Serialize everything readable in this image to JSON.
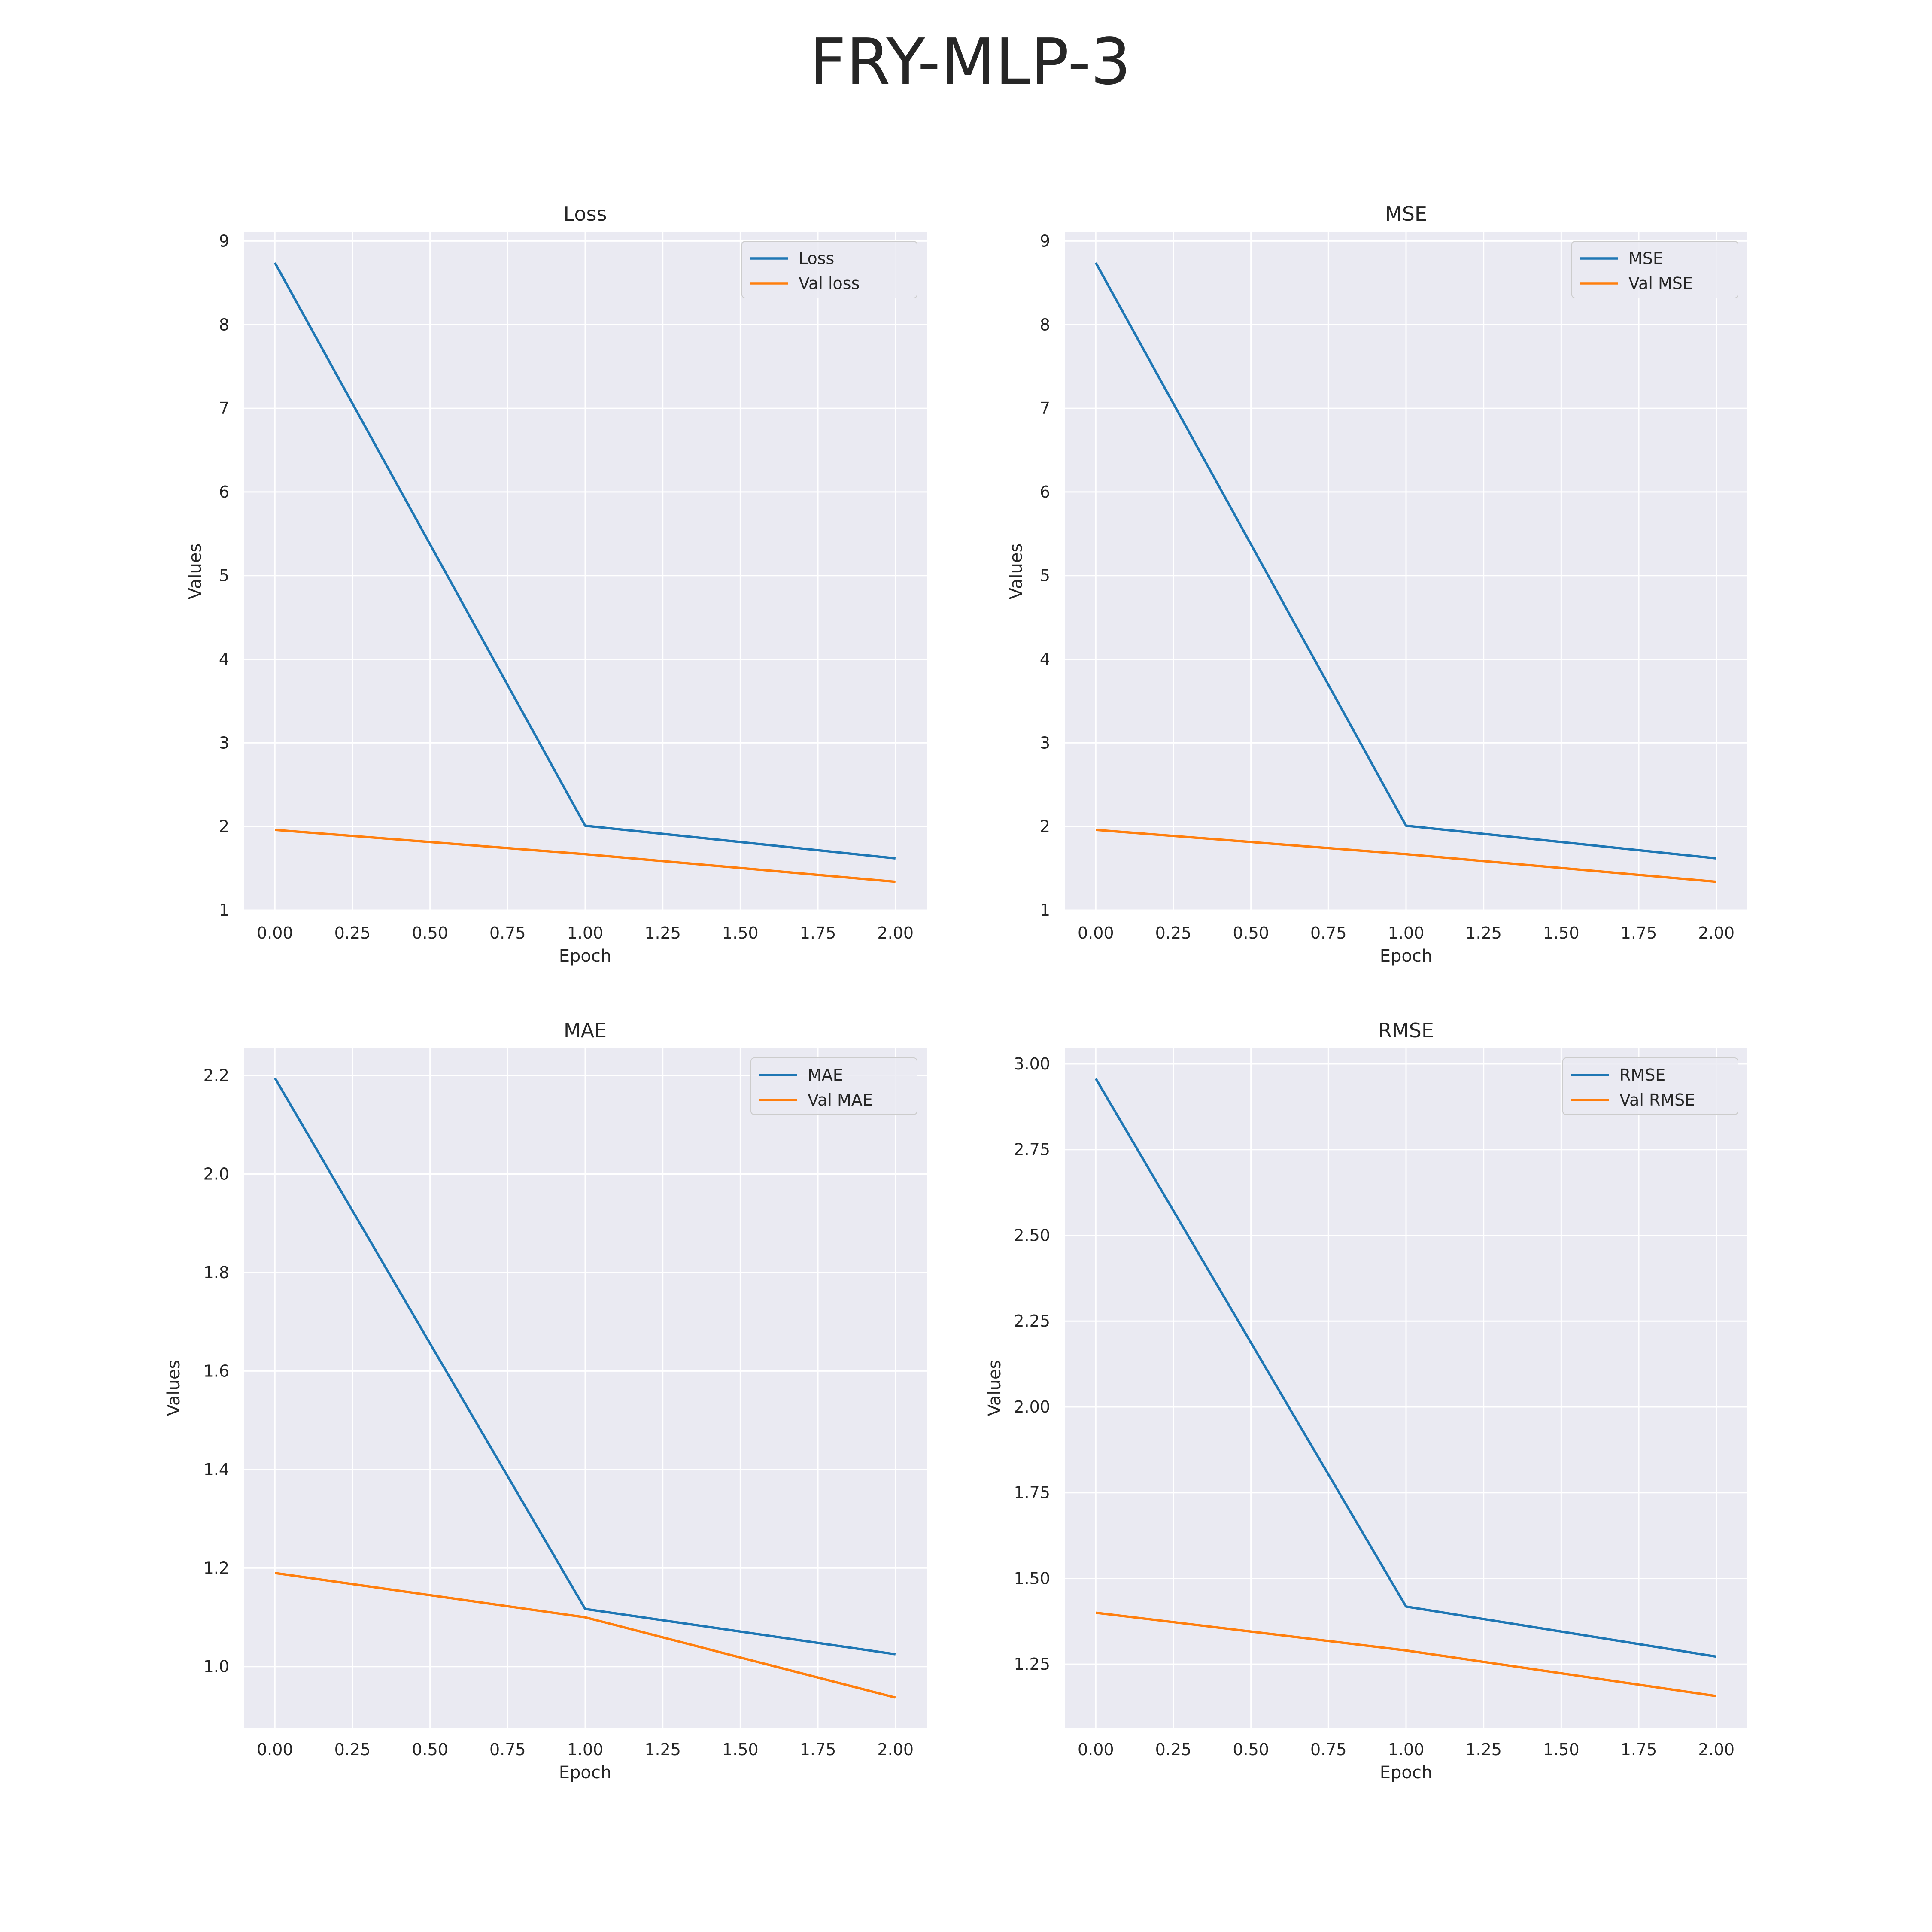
{
  "suptitle": "FRY-MLP-3",
  "colors": {
    "series1": "#1f77b4",
    "series2": "#ff7f0e",
    "axes_bg": "#eaeaf2",
    "grid": "#ffffff"
  },
  "chart_data": [
    {
      "type": "line",
      "title": "Loss",
      "xlabel": "Epoch",
      "ylabel": "Values",
      "xlim": [
        -0.1,
        2.1
      ],
      "ylim": [
        0.99,
        9.11
      ],
      "xticks": [
        0.0,
        0.25,
        0.5,
        0.75,
        1.0,
        1.25,
        1.5,
        1.75,
        2.0
      ],
      "xtick_labels": [
        "0.00",
        "0.25",
        "0.50",
        "0.75",
        "1.00",
        "1.25",
        "1.50",
        "1.75",
        "2.00"
      ],
      "yticks": [
        1,
        2,
        3,
        4,
        5,
        6,
        7,
        8,
        9
      ],
      "ytick_labels": [
        "1",
        "2",
        "3",
        "4",
        "5",
        "6",
        "7",
        "8",
        "9"
      ],
      "x": [
        0,
        1,
        2
      ],
      "series": [
        {
          "name": "Loss",
          "values": [
            8.74,
            2.01,
            1.62
          ]
        },
        {
          "name": "Val loss",
          "values": [
            1.96,
            1.67,
            1.34
          ]
        }
      ],
      "legend": "upper right",
      "grid": true
    },
    {
      "type": "line",
      "title": "MSE",
      "xlabel": "Epoch",
      "ylabel": "Values",
      "xlim": [
        -0.1,
        2.1
      ],
      "ylim": [
        0.99,
        9.11
      ],
      "xticks": [
        0.0,
        0.25,
        0.5,
        0.75,
        1.0,
        1.25,
        1.5,
        1.75,
        2.0
      ],
      "xtick_labels": [
        "0.00",
        "0.25",
        "0.50",
        "0.75",
        "1.00",
        "1.25",
        "1.50",
        "1.75",
        "2.00"
      ],
      "yticks": [
        1,
        2,
        3,
        4,
        5,
        6,
        7,
        8,
        9
      ],
      "ytick_labels": [
        "1",
        "2",
        "3",
        "4",
        "5",
        "6",
        "7",
        "8",
        "9"
      ],
      "x": [
        0,
        1,
        2
      ],
      "series": [
        {
          "name": "MSE",
          "values": [
            8.74,
            2.01,
            1.62
          ]
        },
        {
          "name": "Val MSE",
          "values": [
            1.96,
            1.67,
            1.34
          ]
        }
      ],
      "legend": "upper right",
      "grid": true
    },
    {
      "type": "line",
      "title": "MAE",
      "xlabel": "Epoch",
      "ylabel": "Values",
      "xlim": [
        -0.1,
        2.1
      ],
      "ylim": [
        0.876,
        2.255
      ],
      "xticks": [
        0.0,
        0.25,
        0.5,
        0.75,
        1.0,
        1.25,
        1.5,
        1.75,
        2.0
      ],
      "xtick_labels": [
        "0.00",
        "0.25",
        "0.50",
        "0.75",
        "1.00",
        "1.25",
        "1.50",
        "1.75",
        "2.00"
      ],
      "yticks": [
        1.0,
        1.2,
        1.4,
        1.6,
        1.8,
        2.0,
        2.2
      ],
      "ytick_labels": [
        "1.0",
        "1.2",
        "1.4",
        "1.6",
        "1.8",
        "2.0",
        "2.2"
      ],
      "x": [
        0,
        1,
        2
      ],
      "series": [
        {
          "name": "MAE",
          "values": [
            2.195,
            1.117,
            1.025
          ]
        },
        {
          "name": "Val MAE",
          "values": [
            1.19,
            1.1,
            0.937
          ]
        }
      ],
      "legend": "upper right",
      "grid": true
    },
    {
      "type": "line",
      "title": "RMSE",
      "xlabel": "Epoch",
      "ylabel": "Values",
      "xlim": [
        -0.1,
        2.1
      ],
      "ylim": [
        1.065,
        3.045
      ],
      "xticks": [
        0.0,
        0.25,
        0.5,
        0.75,
        1.0,
        1.25,
        1.5,
        1.75,
        2.0
      ],
      "xtick_labels": [
        "0.00",
        "0.25",
        "0.50",
        "0.75",
        "1.00",
        "1.25",
        "1.50",
        "1.75",
        "2.00"
      ],
      "yticks": [
        1.25,
        1.5,
        1.75,
        2.0,
        2.25,
        2.5,
        2.75,
        3.0
      ],
      "ytick_labels": [
        "1.25",
        "1.50",
        "1.75",
        "2.00",
        "2.25",
        "2.50",
        "2.75",
        "3.00"
      ],
      "x": [
        0,
        1,
        2
      ],
      "series": [
        {
          "name": "RMSE",
          "values": [
            2.957,
            1.418,
            1.272
          ]
        },
        {
          "name": "Val RMSE",
          "values": [
            1.4,
            1.29,
            1.157
          ]
        }
      ],
      "legend": "upper right",
      "grid": true
    }
  ]
}
